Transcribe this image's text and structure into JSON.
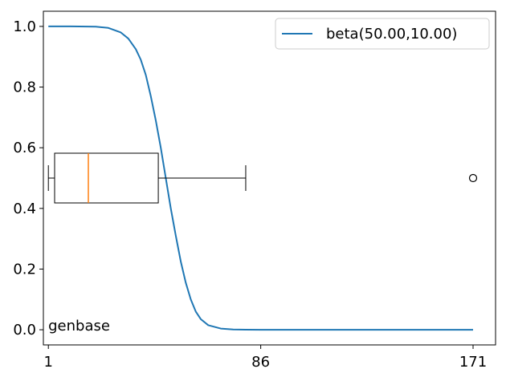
{
  "chart_data": {
    "type": "line",
    "title": "",
    "xlabel": "",
    "ylabel": "",
    "xlim": [
      -1,
      180
    ],
    "ylim": [
      -0.05,
      1.05
    ],
    "x_ticks": [
      1,
      86,
      171
    ],
    "x_tick_labels": [
      "1",
      "86",
      "171"
    ],
    "y_ticks": [
      0.0,
      0.2,
      0.4,
      0.6,
      0.8,
      1.0
    ],
    "y_tick_labels": [
      "0.0",
      "0.2",
      "0.4",
      "0.6",
      "0.8",
      "1.0"
    ],
    "grid": false,
    "legend": {
      "placement": "top-right",
      "entries": [
        "beta(50.00,10.00)"
      ]
    },
    "series": [
      {
        "name": "beta(50.00,10.00)",
        "kind": "curve",
        "color": "#1f77b4",
        "x": [
          1,
          10,
          20,
          25,
          30,
          33,
          36,
          38,
          40,
          42,
          44,
          46,
          48,
          50,
          52,
          54,
          56,
          58,
          60,
          62,
          65,
          70,
          75,
          80,
          86,
          100,
          120,
          140,
          160,
          171
        ],
        "y": [
          1.0,
          1.0,
          0.999,
          0.995,
          0.98,
          0.96,
          0.925,
          0.89,
          0.84,
          0.77,
          0.69,
          0.6,
          0.5,
          0.4,
          0.31,
          0.225,
          0.155,
          0.1,
          0.06,
          0.035,
          0.015,
          0.004,
          0.001,
          0.0002,
          0.0,
          0.0,
          0.0,
          0.0,
          0.0,
          0.0
        ]
      }
    ],
    "boxplot": {
      "color": "#000000",
      "median_color": "#ff7f0e",
      "y_center": 0.5,
      "whisker_low": 1,
      "q1": 3.5,
      "median": 17,
      "q3": 45,
      "whisker_high": 80,
      "outliers": [
        171
      ]
    },
    "annotations": [
      {
        "text": "genbase",
        "x": 0,
        "y": 0.0
      }
    ]
  }
}
